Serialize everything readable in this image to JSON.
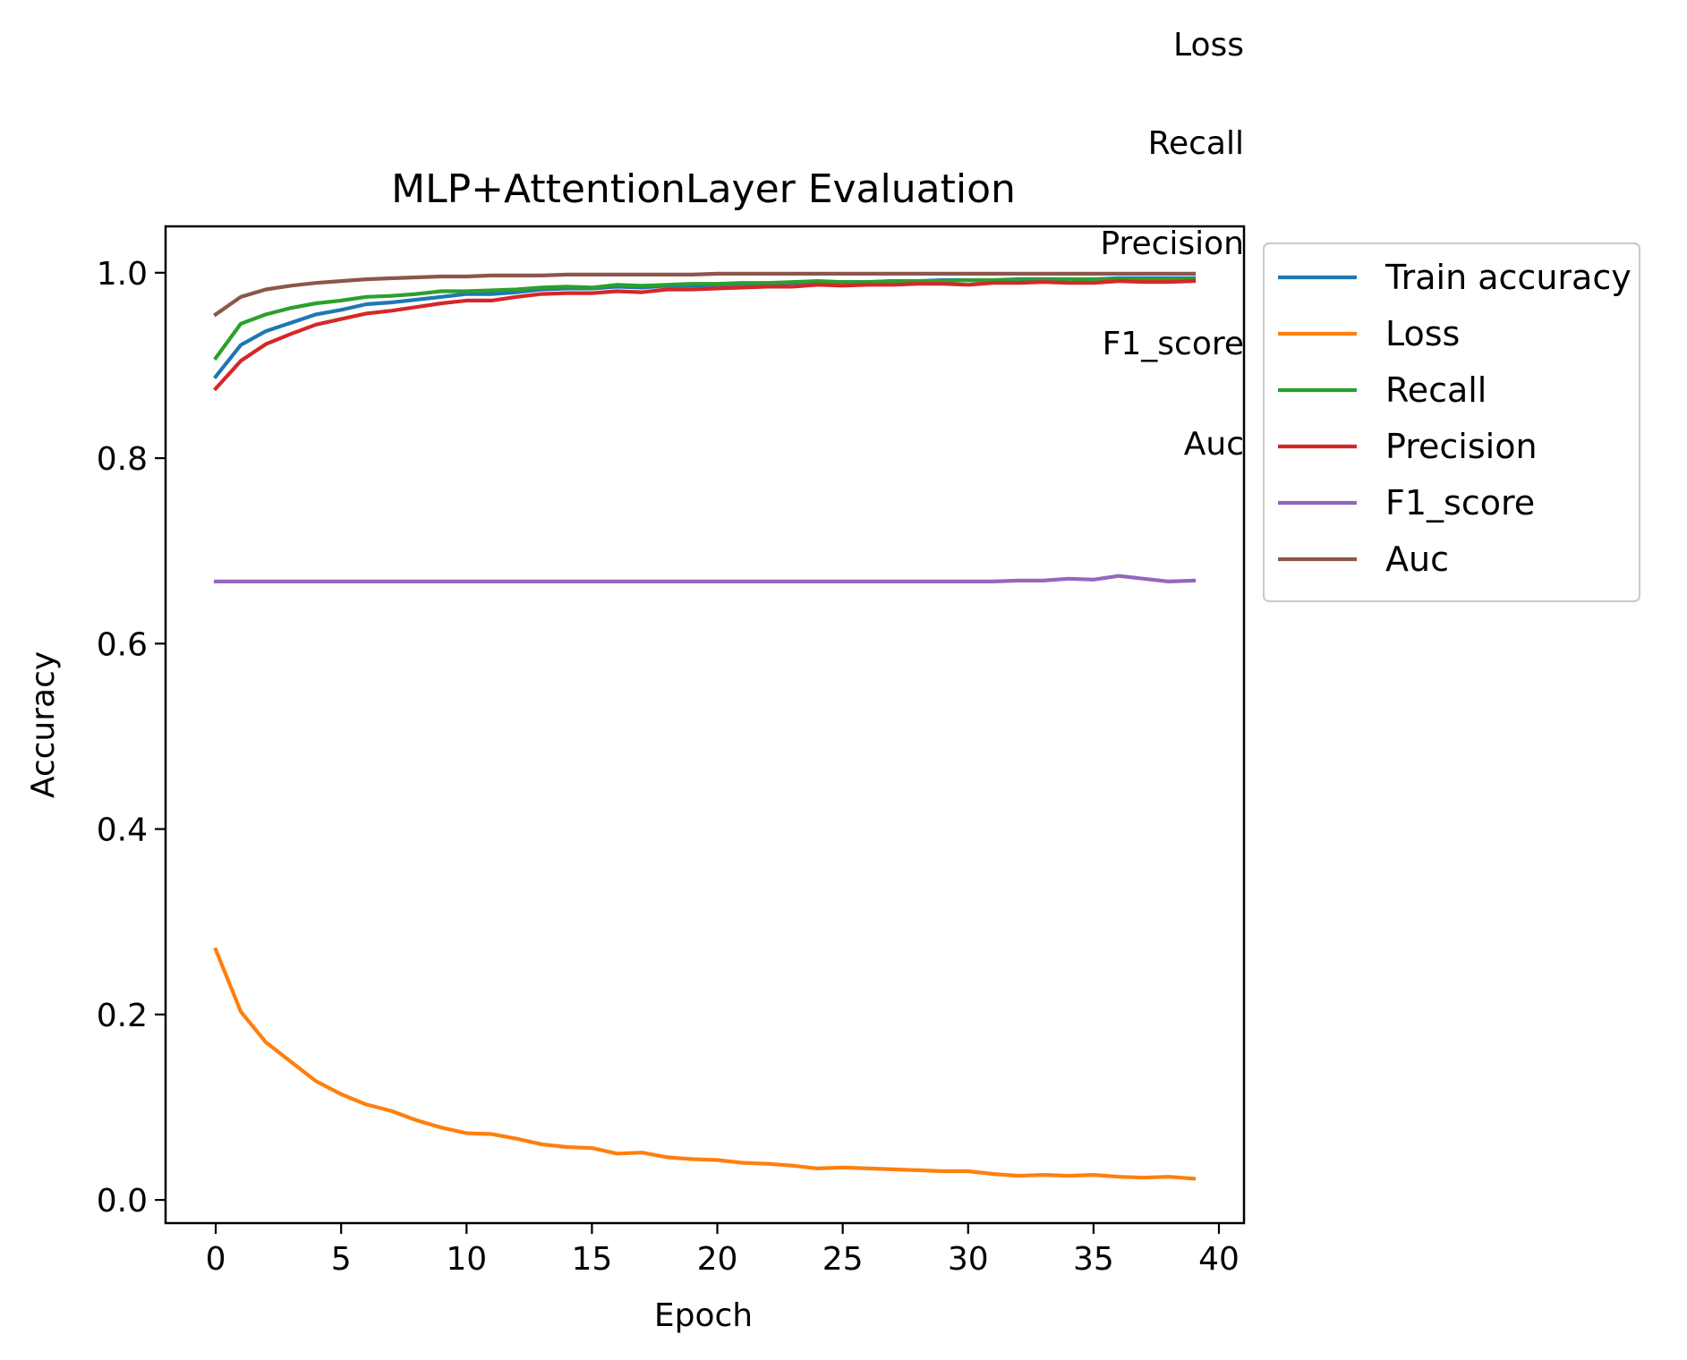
{
  "chart_data": {
    "type": "line",
    "title": "MLP+AttentionLayer Evaluation",
    "xlabel": "Epoch",
    "ylabel": "Accuracy",
    "xlim": [
      -2,
      41
    ],
    "ylim": [
      -0.025,
      1.05
    ],
    "x_ticks": [
      "0",
      "5",
      "10",
      "15",
      "20",
      "25",
      "30",
      "35",
      "40"
    ],
    "y_ticks": [
      "0.0",
      "0.2",
      "0.4",
      "0.6",
      "0.8",
      "1.0"
    ],
    "grid": false,
    "legend_position": "outside right, top",
    "x": [
      0,
      1,
      2,
      3,
      4,
      5,
      6,
      7,
      8,
      9,
      10,
      11,
      12,
      13,
      14,
      15,
      16,
      17,
      18,
      19,
      20,
      21,
      22,
      23,
      24,
      25,
      26,
      27,
      28,
      29,
      30,
      31,
      32,
      33,
      34,
      35,
      36,
      37,
      38,
      39
    ],
    "series": [
      {
        "name": "Train accuracy",
        "color": "#1f77b4",
        "values": [
          0.888,
          0.922,
          0.937,
          0.946,
          0.955,
          0.96,
          0.966,
          0.968,
          0.971,
          0.974,
          0.977,
          0.977,
          0.979,
          0.982,
          0.983,
          0.983,
          0.985,
          0.984,
          0.986,
          0.986,
          0.987,
          0.988,
          0.988,
          0.989,
          0.99,
          0.99,
          0.99,
          0.991,
          0.991,
          0.992,
          0.992,
          0.992,
          0.993,
          0.993,
          0.993,
          0.993,
          0.994,
          0.994,
          0.994,
          0.994
        ]
      },
      {
        "name": "Loss",
        "color": "#ff7f0e",
        "values": [
          0.27,
          0.203,
          0.17,
          0.149,
          0.128,
          0.114,
          0.103,
          0.096,
          0.086,
          0.078,
          0.072,
          0.071,
          0.066,
          0.06,
          0.057,
          0.056,
          0.05,
          0.051,
          0.046,
          0.044,
          0.043,
          0.04,
          0.039,
          0.037,
          0.034,
          0.035,
          0.034,
          0.033,
          0.032,
          0.031,
          0.031,
          0.028,
          0.026,
          0.027,
          0.026,
          0.027,
          0.025,
          0.024,
          0.025,
          0.023
        ]
      },
      {
        "name": "Recall",
        "color": "#2ca02c",
        "values": [
          0.908,
          0.945,
          0.955,
          0.962,
          0.967,
          0.97,
          0.974,
          0.975,
          0.977,
          0.98,
          0.98,
          0.981,
          0.982,
          0.984,
          0.985,
          0.984,
          0.987,
          0.986,
          0.987,
          0.988,
          0.988,
          0.989,
          0.989,
          0.99,
          0.991,
          0.99,
          0.99,
          0.991,
          0.991,
          0.991,
          0.992,
          0.992,
          0.992,
          0.992,
          0.993,
          0.993,
          0.993,
          0.993,
          0.993,
          0.993
        ]
      },
      {
        "name": "Precision",
        "color": "#d62728",
        "values": [
          0.875,
          0.905,
          0.923,
          0.934,
          0.944,
          0.95,
          0.956,
          0.959,
          0.963,
          0.967,
          0.97,
          0.97,
          0.974,
          0.977,
          0.978,
          0.978,
          0.98,
          0.979,
          0.982,
          0.982,
          0.983,
          0.984,
          0.985,
          0.985,
          0.987,
          0.986,
          0.987,
          0.987,
          0.988,
          0.988,
          0.987,
          0.989,
          0.989,
          0.99,
          0.989,
          0.989,
          0.991,
          0.99,
          0.99,
          0.991
        ]
      },
      {
        "name": "F1_score",
        "color": "#9467bd",
        "values": [
          0.667,
          0.667,
          0.667,
          0.667,
          0.667,
          0.667,
          0.667,
          0.667,
          0.667,
          0.667,
          0.667,
          0.667,
          0.667,
          0.667,
          0.667,
          0.667,
          0.667,
          0.667,
          0.667,
          0.667,
          0.667,
          0.667,
          0.667,
          0.667,
          0.667,
          0.667,
          0.667,
          0.667,
          0.667,
          0.667,
          0.667,
          0.667,
          0.668,
          0.668,
          0.67,
          0.669,
          0.673,
          0.67,
          0.667,
          0.668
        ]
      },
      {
        "name": "Auc",
        "color": "#8c564b",
        "values": [
          0.955,
          0.974,
          0.982,
          0.986,
          0.989,
          0.991,
          0.993,
          0.994,
          0.995,
          0.996,
          0.996,
          0.997,
          0.997,
          0.997,
          0.998,
          0.998,
          0.998,
          0.998,
          0.998,
          0.998,
          0.999,
          0.999,
          0.999,
          0.999,
          0.999,
          0.999,
          0.999,
          0.999,
          0.999,
          0.999,
          0.999,
          0.999,
          0.999,
          0.999,
          0.999,
          0.999,
          0.999,
          0.999,
          0.999,
          0.999
        ]
      }
    ],
    "floating_labels": [
      "Loss",
      "Recall",
      "Precision",
      "F1_score",
      "Auc"
    ]
  }
}
